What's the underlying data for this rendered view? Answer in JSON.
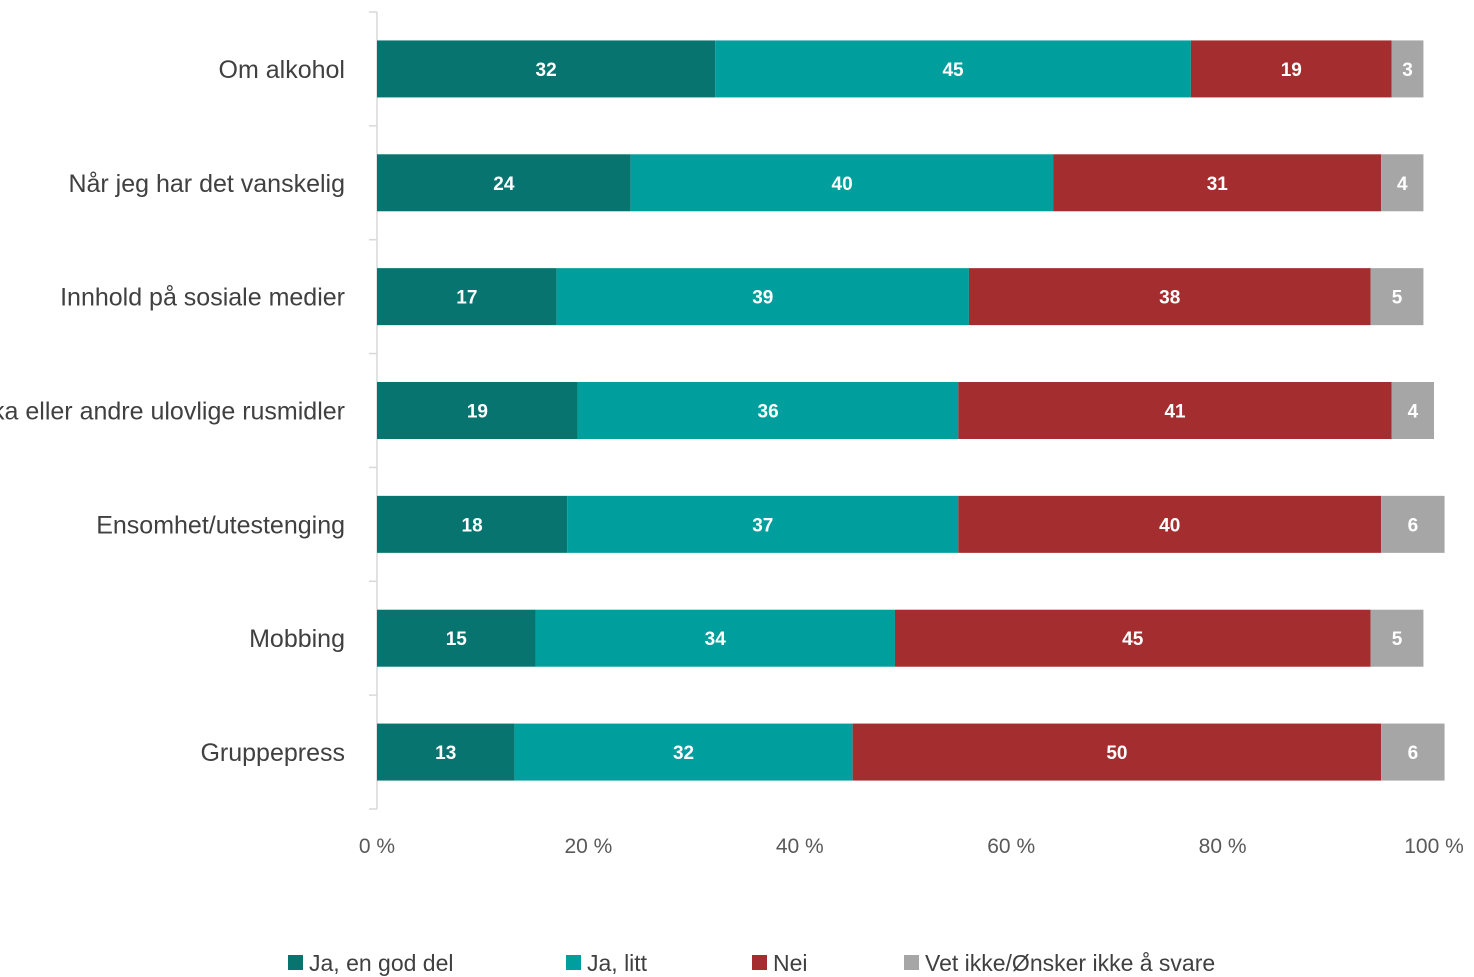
{
  "chart_data": {
    "type": "bar",
    "orientation": "horizontal",
    "stacked": true,
    "categories": [
      "Om alkohol",
      "Når jeg har det vanskelig",
      "Innhold på sosiale medier",
      "Narkotika eller andre ulovlige rusmidler",
      "Ensomhet/utestenging",
      "Mobbing",
      "Gruppepress"
    ],
    "series": [
      {
        "name": "Ja, en god del",
        "color": "#077470",
        "values": [
          32,
          24,
          17,
          19,
          18,
          15,
          13
        ]
      },
      {
        "name": "Ja, litt",
        "color": "#009e9c",
        "values": [
          45,
          40,
          39,
          36,
          37,
          34,
          32
        ]
      },
      {
        "name": "Nei",
        "color": "#a32d2f",
        "values": [
          19,
          31,
          38,
          41,
          40,
          45,
          50
        ]
      },
      {
        "name": "Vet ikke/Ønsker ikke å svare",
        "color": "#a6a6a6",
        "values": [
          3,
          4,
          5,
          4,
          6,
          5,
          6
        ]
      }
    ],
    "xlim": [
      0,
      100
    ],
    "xticks": [
      "0 %",
      "20 %",
      "40 %",
      "60 %",
      "80 %",
      "100 %"
    ],
    "grid": false,
    "legend": "bottom"
  }
}
